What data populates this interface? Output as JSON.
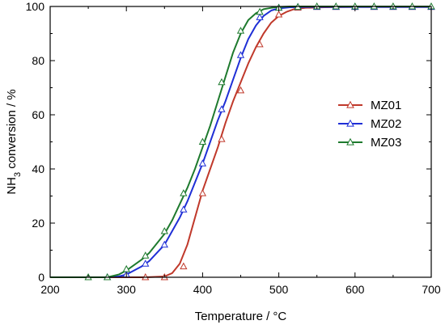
{
  "chart_data": {
    "type": "line",
    "xlabel": "Temperature / °C",
    "ylabel_main": "NH",
    "ylabel_sub": "3",
    "ylabel_rest": " conversion / %",
    "xlim": [
      200,
      700
    ],
    "ylim": [
      0,
      100
    ],
    "xticks": [
      200,
      300,
      400,
      500,
      600,
      700
    ],
    "yticks": [
      0,
      20,
      40,
      60,
      80,
      100
    ],
    "grid": false,
    "legend_position": "right-center",
    "marker": "open-triangle",
    "series": [
      {
        "name": "MZ01",
        "color": "#c0392b",
        "curve_x": [
          200,
          325,
          350,
          360,
          370,
          380,
          390,
          400,
          410,
          420,
          430,
          440,
          450,
          460,
          470,
          480,
          490,
          500,
          510,
          520,
          535,
          560,
          600,
          650,
          700
        ],
        "curve_y": [
          0,
          0,
          0.3,
          1.5,
          5,
          12,
          22,
          32,
          40,
          48,
          57,
          65,
          72,
          79,
          85,
          90,
          94,
          96.5,
          98,
          99,
          99.5,
          99.7,
          99.8,
          99.8,
          99.8
        ],
        "points_x": [
          325,
          350,
          375,
          400,
          425,
          450,
          475,
          500,
          525,
          550,
          575,
          600,
          625,
          650,
          675,
          700
        ],
        "points_y": [
          0,
          0,
          4,
          31,
          51,
          69,
          86,
          97,
          99.5,
          99.8,
          99.8,
          99.8,
          99.8,
          99.8,
          99.8,
          99.8
        ]
      },
      {
        "name": "MZ02",
        "color": "#1f2fd6",
        "curve_x": [
          200,
          275,
          290,
          300,
          310,
          320,
          330,
          340,
          350,
          360,
          370,
          380,
          390,
          400,
          410,
          420,
          430,
          440,
          450,
          460,
          470,
          480,
          490,
          500,
          515,
          540,
          600,
          700
        ],
        "curve_y": [
          0,
          0,
          0.3,
          1,
          2.5,
          4,
          6,
          9,
          12,
          17,
          22,
          28,
          35,
          42,
          50,
          58,
          65,
          73,
          81,
          88,
          93,
          96.5,
          98.5,
          99.3,
          99.7,
          99.8,
          99.8,
          99.8
        ],
        "points_x": [
          275,
          300,
          325,
          350,
          375,
          400,
          425,
          450,
          475,
          500,
          525,
          550,
          575,
          600,
          625,
          650,
          675,
          700
        ],
        "points_y": [
          0,
          1,
          5,
          12,
          25,
          42,
          62,
          82,
          96,
          99.5,
          99.8,
          99.8,
          99.8,
          99.8,
          99.8,
          99.8,
          99.8,
          99.8
        ]
      },
      {
        "name": "MZ03",
        "color": "#1e7a2e",
        "curve_x": [
          200,
          275,
          290,
          300,
          310,
          320,
          330,
          340,
          350,
          360,
          370,
          380,
          390,
          400,
          410,
          420,
          430,
          440,
          450,
          460,
          470,
          480,
          490,
          500,
          515,
          540,
          600,
          700
        ],
        "curve_y": [
          0,
          0,
          1,
          2.5,
          4.5,
          6.5,
          9,
          12.5,
          16,
          21,
          27,
          33,
          40,
          48,
          56,
          65,
          74,
          83,
          90,
          95,
          97.5,
          99,
          99.5,
          99.8,
          100,
          100,
          100,
          100
        ],
        "points_x": [
          250,
          275,
          300,
          325,
          350,
          375,
          400,
          425,
          450,
          475,
          500,
          525,
          550,
          575,
          600,
          625,
          650,
          675,
          700
        ],
        "points_y": [
          0,
          0,
          3,
          8,
          17,
          31,
          50,
          72,
          91,
          98,
          99.5,
          99.8,
          100,
          100,
          100,
          100,
          100,
          100,
          100
        ]
      }
    ]
  }
}
